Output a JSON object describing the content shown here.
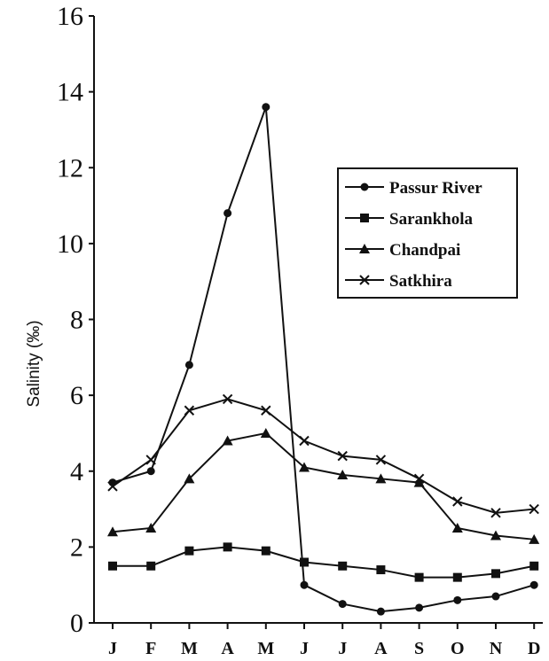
{
  "chart_data": {
    "type": "line",
    "title": "",
    "xlabel": "",
    "ylabel": "Salinity (‰)",
    "categories": [
      "J",
      "F",
      "M",
      "A",
      "M",
      "J",
      "J",
      "A",
      "S",
      "O",
      "N",
      "D"
    ],
    "ylim": [
      0,
      16
    ],
    "yticks": [
      0,
      2,
      4,
      6,
      8,
      10,
      12,
      14,
      16
    ],
    "grid": false,
    "legend_position": "right",
    "series": [
      {
        "name": "Passur River",
        "marker": "circle",
        "values": [
          3.7,
          4.0,
          6.8,
          10.8,
          13.6,
          1.0,
          0.5,
          0.3,
          0.4,
          0.6,
          0.7,
          1.0
        ]
      },
      {
        "name": "Sarankhola",
        "marker": "square",
        "values": [
          1.5,
          1.5,
          1.9,
          2.0,
          1.9,
          1.6,
          1.5,
          1.4,
          1.2,
          1.2,
          1.3,
          1.5
        ]
      },
      {
        "name": "Chandpai",
        "marker": "triangle",
        "values": [
          2.4,
          2.5,
          3.8,
          4.8,
          5.0,
          4.1,
          3.9,
          3.8,
          3.7,
          2.5,
          2.3,
          2.2
        ]
      },
      {
        "name": "Satkhira",
        "marker": "x",
        "values": [
          3.6,
          4.3,
          5.6,
          5.9,
          5.6,
          4.8,
          4.4,
          4.3,
          3.8,
          3.2,
          2.9,
          3.0
        ]
      }
    ]
  }
}
